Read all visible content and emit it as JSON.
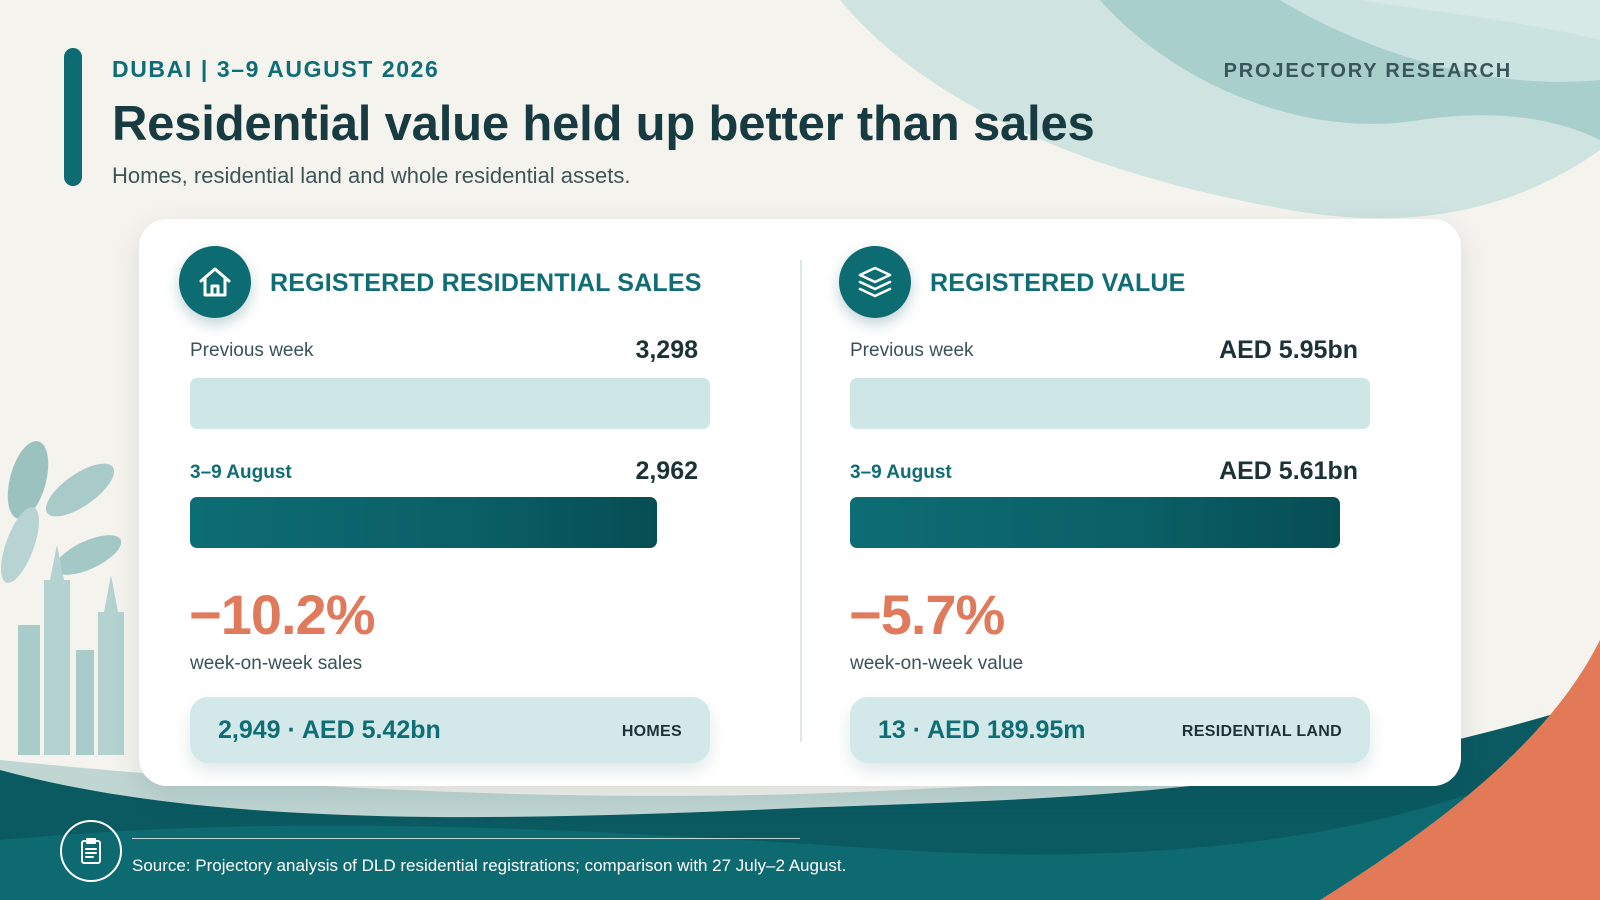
{
  "header": {
    "eyebrow": "DUBAI | 3–9 AUGUST 2026",
    "brand": "PROJECTORY RESEARCH",
    "title": "Residential value held up better than sales",
    "subtitle": "Homes, residential land and whole residential assets."
  },
  "panels": [
    {
      "icon": "house-icon",
      "title": "REGISTERED RESIDENTIAL SALES",
      "previous_label": "Previous week",
      "previous_value": "3,298",
      "previous_fraction": 1.0,
      "current_label": "3–9 August",
      "current_value": "2,962",
      "current_fraction": 0.898,
      "change": "−10.2%",
      "change_label": "week-on-week sales",
      "pill_value": "2,949 · AED 5.42bn",
      "pill_tag": "HOMES"
    },
    {
      "icon": "layers-icon",
      "title": "REGISTERED VALUE",
      "previous_label": "Previous week",
      "previous_value": "AED 5.95bn",
      "previous_fraction": 1.0,
      "current_label": "3–9 August",
      "current_value": "AED 5.61bn",
      "current_fraction": 0.943,
      "change": "−5.7%",
      "change_label": "week-on-week value",
      "pill_value": "13 · AED 189.95m",
      "pill_tag": "RESIDENTIAL LAND"
    }
  ],
  "footer": {
    "icon": "document-icon",
    "source": "Source: Projectory analysis of DLD residential registrations; comparison with 27 July–2 August."
  },
  "colors": {
    "accent": "#0d6b72",
    "negative": "#e07a5c",
    "bar_light": "#cfe6e6",
    "pill": "#d3e9e9",
    "background": "#f5f3ee"
  }
}
